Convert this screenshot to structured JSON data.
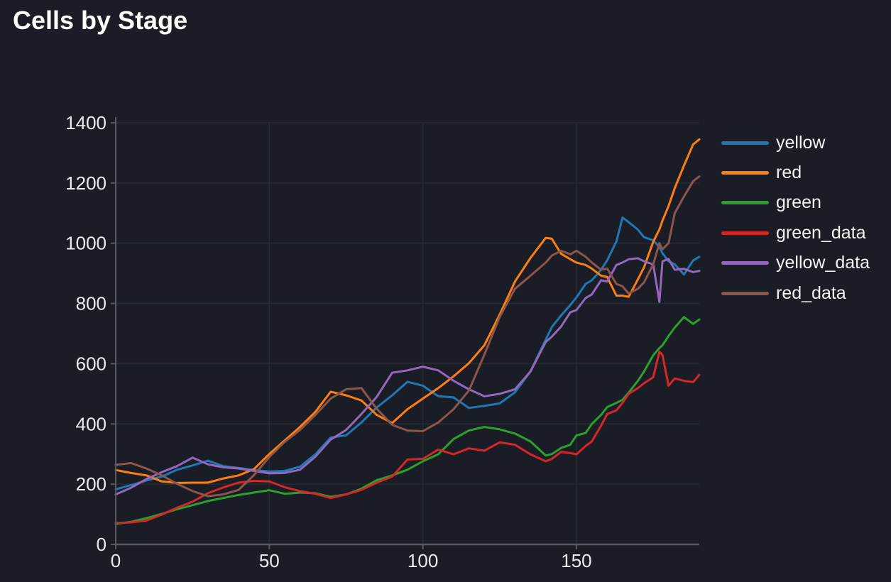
{
  "title": "Cells by Stage",
  "chart_data": {
    "type": "line",
    "title": "Cells by Stage",
    "xlabel": "",
    "ylabel": "",
    "xlim": [
      0,
      190
    ],
    "ylim": [
      0,
      1400
    ],
    "x_ticks": [
      0,
      50,
      100,
      150
    ],
    "y_ticks": [
      0,
      200,
      400,
      600,
      800,
      1000,
      1200,
      1400
    ],
    "grid": true,
    "legend_position": "right",
    "colors": {
      "background": "#1a1d25",
      "grid": "#262a33",
      "spine": "#56595f",
      "tick_text": "#ebebee",
      "title_text": "#ffffff"
    },
    "x": [
      0,
      5,
      10,
      15,
      20,
      25,
      30,
      35,
      40,
      45,
      50,
      55,
      60,
      65,
      70,
      75,
      80,
      85,
      90,
      95,
      100,
      105,
      110,
      115,
      120,
      125,
      130,
      135,
      140,
      142,
      145,
      148,
      150,
      153,
      155,
      158,
      160,
      163,
      165,
      167,
      170,
      172,
      175,
      177,
      178,
      180,
      182,
      185,
      188,
      190
    ],
    "series": [
      {
        "name": "yellow",
        "color": "#1f77b4",
        "values": [
          183,
          197,
          212,
          225,
          248,
          262,
          278,
          260,
          254,
          247,
          242,
          244,
          258,
          299,
          355,
          362,
          405,
          455,
          495,
          540,
          527,
          492,
          488,
          453,
          460,
          468,
          505,
          574,
          680,
          722,
          760,
          795,
          820,
          865,
          877,
          912,
          943,
          1006,
          1085,
          1070,
          1045,
          1020,
          1010,
          987,
          967,
          940,
          930,
          896,
          943,
          955
        ]
      },
      {
        "name": "red",
        "color": "#ff7f0e",
        "values": [
          247,
          237,
          229,
          209,
          204,
          205,
          205,
          219,
          229,
          250,
          300,
          345,
          390,
          440,
          507,
          495,
          478,
          430,
          403,
          449,
          484,
          519,
          558,
          602,
          661,
          763,
          873,
          951,
          1018,
          1015,
          965,
          947,
          936,
          928,
          916,
          892,
          888,
          826,
          826,
          822,
          880,
          920,
          1005,
          1046,
          1075,
          1124,
          1183,
          1258,
          1328,
          1345
        ]
      },
      {
        "name": "green",
        "color": "#2ca02c",
        "values": [
          68,
          75,
          87,
          101,
          117,
          130,
          144,
          154,
          164,
          172,
          180,
          168,
          172,
          170,
          158,
          166,
          185,
          213,
          229,
          248,
          276,
          299,
          350,
          378,
          390,
          382,
          368,
          342,
          295,
          300,
          320,
          331,
          362,
          370,
          400,
          430,
          456,
          470,
          480,
          504,
          543,
          574,
          628,
          652,
          661,
          692,
          720,
          755,
          732,
          747
        ]
      },
      {
        "name": "green_data",
        "color": "#d62728",
        "values": [
          71,
          73,
          79,
          99,
          122,
          142,
          170,
          189,
          205,
          211,
          209,
          190,
          177,
          168,
          154,
          166,
          181,
          205,
          225,
          282,
          284,
          315,
          299,
          319,
          311,
          339,
          331,
          299,
          276,
          284,
          307,
          303,
          299,
          327,
          342,
          394,
          433,
          445,
          470,
          500,
          519,
          535,
          555,
          640,
          629,
          527,
          551,
          543,
          539,
          563
        ]
      },
      {
        "name": "yellow_data",
        "color": "#9467bd",
        "values": [
          166,
          188,
          217,
          240,
          260,
          288,
          266,
          256,
          252,
          244,
          236,
          237,
          248,
          291,
          348,
          380,
          433,
          490,
          570,
          578,
          590,
          578,
          543,
          515,
          492,
          500,
          515,
          574,
          672,
          690,
          723,
          771,
          778,
          818,
          830,
          877,
          873,
          928,
          936,
          947,
          950,
          940,
          930,
          805,
          940,
          948,
          912,
          915,
          904,
          908
        ]
      },
      {
        "name": "red_data",
        "color": "#8c564b",
        "values": [
          264,
          270,
          252,
          229,
          201,
          177,
          160,
          166,
          181,
          230,
          290,
          340,
          380,
          430,
          484,
          515,
          519,
          450,
          397,
          378,
          376,
          405,
          449,
          511,
          630,
          755,
          849,
          892,
          936,
          959,
          975,
          963,
          975,
          955,
          936,
          912,
          916,
          865,
          857,
          833,
          849,
          870,
          930,
          1000,
          980,
          1000,
          1100,
          1155,
          1206,
          1222
        ]
      }
    ]
  }
}
